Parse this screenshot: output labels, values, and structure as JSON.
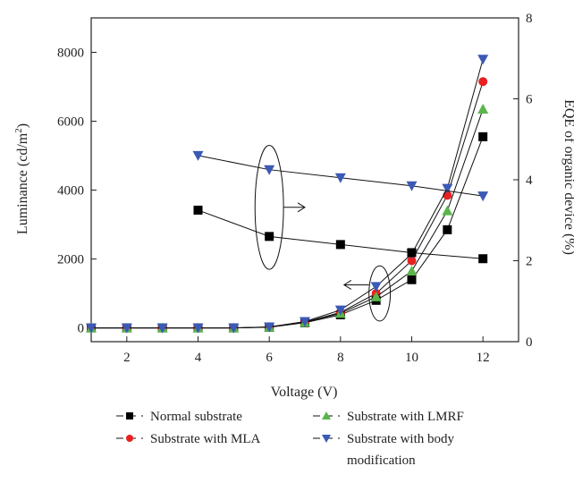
{
  "chart_data": {
    "type": "line",
    "title": "",
    "xlabel": "Voltage (V)",
    "ylabel_left": "Luminance (cd/m",
    "ylabel_left_sup": "2",
    "ylabel_left_close": ")",
    "ylabel_right": "EQE of organic device (%)",
    "xlim": [
      1,
      13
    ],
    "ylim_left": [
      -400,
      9000
    ],
    "ylim_right": [
      0,
      8
    ],
    "x_ticks": [
      2,
      4,
      6,
      8,
      10,
      12
    ],
    "y_left_ticks": [
      0,
      2000,
      4000,
      6000,
      8000
    ],
    "y_right_ticks": [
      0,
      2,
      4,
      6,
      8
    ],
    "grid": false,
    "legend_position": "bottom",
    "luminance_series": [
      {
        "name": "Normal substrate",
        "color": "#000000",
        "marker": "square",
        "x": [
          1,
          2,
          3,
          4,
          5,
          6,
          7,
          8,
          9,
          10,
          11,
          12
        ],
        "y": [
          0,
          0,
          0,
          0,
          0,
          20,
          150,
          380,
          800,
          1400,
          2850,
          5550
        ]
      },
      {
        "name": "Substrate with MLA",
        "color": "#e8201f",
        "marker": "circle",
        "x": [
          1,
          2,
          3,
          4,
          5,
          6,
          7,
          8,
          9,
          10,
          11,
          12
        ],
        "y": [
          0,
          0,
          0,
          0,
          0,
          25,
          170,
          450,
          1000,
          1950,
          3850,
          7150
        ]
      },
      {
        "name": "Substrate with LMRF",
        "color": "#5ab54b",
        "marker": "triangle-up",
        "x": [
          1,
          2,
          3,
          4,
          5,
          6,
          7,
          8,
          9,
          10,
          11,
          12
        ],
        "y": [
          0,
          0,
          0,
          0,
          0,
          22,
          160,
          420,
          900,
          1650,
          3400,
          6350
        ]
      },
      {
        "name": "Substrate with body modification",
        "color": "#3b59b5",
        "marker": "triangle-down",
        "x": [
          1,
          2,
          3,
          4,
          5,
          6,
          7,
          8,
          9,
          10,
          11,
          12
        ],
        "y": [
          0,
          0,
          0,
          0,
          0,
          30,
          185,
          520,
          1200,
          2150,
          4050,
          7800
        ]
      }
    ],
    "eqe_series": [
      {
        "name": "Normal substrate",
        "color": "#000000",
        "marker": "square",
        "x": [
          4,
          6,
          8,
          10,
          12
        ],
        "y": [
          3.25,
          2.6,
          2.4,
          2.2,
          2.05
        ]
      },
      {
        "name": "Substrate with body modification",
        "color": "#3b59b5",
        "marker": "triangle-down",
        "x": [
          4,
          6,
          8,
          10,
          12
        ],
        "y": [
          4.6,
          4.25,
          4.05,
          3.85,
          3.6
        ]
      }
    ],
    "annotations": [
      {
        "ellipse": {
          "cx": 6,
          "cy_left": 3500,
          "rx_units": 0.4,
          "ry_units": 1800
        },
        "arrow": "right",
        "arrow_x": [
          6.4,
          7.0
        ],
        "arrow_y": 3500
      },
      {
        "ellipse": {
          "cx": 9.1,
          "cy_left": 1000,
          "rx_units": 0.3,
          "ry_units": 800
        },
        "arrow": "left",
        "arrow_x": [
          8.8,
          8.1
        ],
        "arrow_y": 1250
      }
    ]
  }
}
